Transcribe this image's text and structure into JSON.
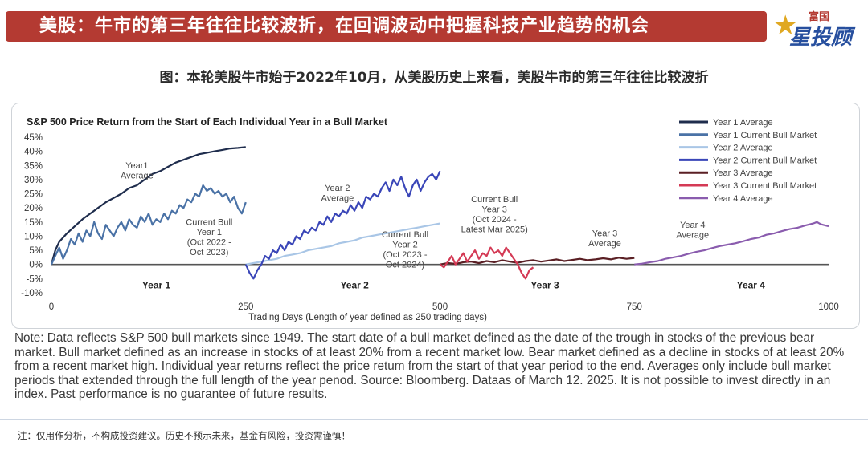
{
  "banner": {
    "title": "美股：牛市的第三年往往比较波折，在回调波动中把握科技产业趋势的机会"
  },
  "logo": {
    "top": "富国",
    "main": "星投顾"
  },
  "subtitle": "图：本轮美股牛市始于2022年10月，从美股历史上来看，美股牛市的第三年往往比较波折",
  "note": "Note: Data reflects S&P 500 bull markets since 1949. The start date of a bull market defined as the date of the trough in stocks of the previous bear market. Bull market defined as an increase in stocks of at least 20% from a recent market low. Bear market defined as a decline in stocks of at least 20% from a recent market high. Individual year returns reflect the price retum from the start of that year period to the end. Averages only include bull market periods that extended through the full length of the year penod. Source: Bloomberg. Dataas of March 12. 2025. It is not possible to invest directly in an index.  Past performance is no guarantee of future results.",
  "footer": "注：仅用作分析，不构成投资建议。历史不预示未来，基金有风险，投资需谨慎！",
  "chart_data": {
    "type": "line",
    "title": "S&P 500 Price Return from the Start of Each Individual Year in a Bull Market",
    "xlabel": "Trading Days (Length of year defined as 250 trading days)",
    "xlim": [
      0,
      1000
    ],
    "ylim": [
      -10,
      45
    ],
    "xticks": [
      0,
      250,
      500,
      750,
      1000
    ],
    "yticks": [
      -10,
      -5,
      0,
      5,
      10,
      15,
      20,
      25,
      30,
      35,
      40,
      45
    ],
    "year_labels": [
      {
        "text": "Year 1",
        "x": 135
      },
      {
        "text": "Year 2",
        "x": 390
      },
      {
        "text": "Year 3",
        "x": 635
      },
      {
        "text": "Year 4",
        "x": 900
      }
    ],
    "annotations": [
      {
        "lines": [
          "Year1",
          "Average"
        ],
        "x": 110,
        "y": 34
      },
      {
        "lines": [
          "Current Bull",
          "Year 1",
          "(Oct 2022 -",
          "Oct 2023)"
        ],
        "x": 203,
        "y": 14
      },
      {
        "lines": [
          "Year 2",
          "Average"
        ],
        "x": 368,
        "y": 26
      },
      {
        "lines": [
          "Current Bull",
          "Year 2",
          "(Oct 2023 -",
          "Oct 2024)"
        ],
        "x": 455,
        "y": 9.5
      },
      {
        "lines": [
          "Current Bull",
          "Year 3",
          "(Oct 2024 -",
          "Latest Mar 2025)"
        ],
        "x": 570,
        "y": 22
      },
      {
        "lines": [
          "Year 3",
          "Average"
        ],
        "x": 712,
        "y": 10
      },
      {
        "lines": [
          "Year 4",
          "Average"
        ],
        "x": 825,
        "y": 13
      }
    ],
    "legend_position": "top-right",
    "series": [
      {
        "name": "Year 1 Average",
        "color": "#1f2d4d",
        "x": [
          0,
          5,
          10,
          20,
          30,
          40,
          50,
          60,
          70,
          80,
          90,
          100,
          110,
          120,
          130,
          140,
          150,
          160,
          170,
          180,
          190,
          200,
          210,
          220,
          230,
          240,
          250
        ],
        "y": [
          0,
          5,
          8,
          11,
          13.5,
          16,
          18,
          20,
          22,
          23.5,
          25,
          27,
          28,
          30,
          32,
          33,
          34.5,
          36,
          37,
          38,
          39,
          39.5,
          40,
          40.5,
          41,
          41.2,
          41.5
        ]
      },
      {
        "name": "Year 1 Current Bull Market",
        "color": "#4a72a6",
        "x": [
          0,
          5,
          10,
          15,
          20,
          25,
          30,
          35,
          40,
          45,
          50,
          55,
          60,
          65,
          70,
          75,
          80,
          85,
          90,
          95,
          100,
          105,
          110,
          115,
          120,
          125,
          130,
          135,
          140,
          145,
          150,
          155,
          160,
          165,
          170,
          175,
          180,
          185,
          190,
          195,
          200,
          205,
          210,
          215,
          220,
          225,
          230,
          235,
          240,
          245,
          250
        ],
        "y": [
          0,
          3,
          6,
          2,
          5,
          9,
          7,
          11,
          8,
          12,
          10,
          15,
          11,
          9,
          14,
          12,
          10,
          13,
          15,
          12,
          16,
          14,
          13,
          17,
          15,
          18,
          14,
          16,
          15,
          18,
          16,
          19,
          18,
          21,
          20,
          23,
          22,
          25,
          24,
          28,
          26,
          27,
          25,
          26,
          24,
          25,
          22,
          24,
          20,
          18,
          22
        ]
      },
      {
        "name": "Year 2 Average",
        "color": "#a9c6e6",
        "x": [
          250,
          260,
          270,
          280,
          290,
          300,
          310,
          320,
          330,
          340,
          350,
          360,
          370,
          380,
          390,
          400,
          410,
          420,
          430,
          440,
          450,
          460,
          470,
          480,
          490,
          500
        ],
        "y": [
          0,
          0.5,
          1,
          1.5,
          2,
          3,
          3.5,
          4,
          5,
          5.5,
          6,
          6.5,
          7.5,
          8,
          8.5,
          9.5,
          10,
          10.5,
          11,
          11.5,
          12,
          12.5,
          13,
          13.5,
          14,
          14.5
        ]
      },
      {
        "name": "Year 2 Current Bull Market",
        "color": "#3a46b8",
        "x": [
          250,
          255,
          260,
          265,
          270,
          275,
          280,
          285,
          290,
          295,
          300,
          305,
          310,
          315,
          320,
          325,
          330,
          335,
          340,
          345,
          350,
          355,
          360,
          365,
          370,
          375,
          380,
          385,
          390,
          395,
          400,
          405,
          410,
          415,
          420,
          425,
          430,
          435,
          440,
          445,
          450,
          455,
          460,
          465,
          470,
          475,
          480,
          485,
          490,
          495,
          500
        ],
        "y": [
          0,
          -3,
          -5,
          -2,
          0,
          3,
          2,
          5,
          4,
          7,
          5,
          8,
          7,
          10,
          9,
          12,
          11,
          13,
          12,
          15,
          14,
          17,
          15,
          18,
          17,
          19,
          18,
          21,
          19,
          22,
          20,
          24,
          23,
          25,
          24,
          27,
          29,
          26,
          30,
          28,
          31,
          27,
          24,
          28,
          30,
          26,
          29,
          31,
          32,
          30,
          33
        ]
      },
      {
        "name": "Year 3 Average",
        "color": "#5a1f24",
        "x": [
          500,
          510,
          520,
          530,
          540,
          550,
          560,
          570,
          580,
          590,
          600,
          610,
          620,
          630,
          640,
          650,
          660,
          670,
          680,
          690,
          700,
          710,
          720,
          730,
          740,
          750
        ],
        "y": [
          0,
          0.5,
          0.2,
          0.8,
          1,
          0.5,
          1.2,
          0.8,
          1.5,
          1,
          0.6,
          1.2,
          1.5,
          1,
          1.4,
          1.8,
          1.2,
          1.6,
          2,
          1.5,
          1.8,
          2.2,
          1.8,
          2.4,
          2,
          2.3
        ]
      },
      {
        "name": "Year 3 Current Bull Market",
        "color": "#d43a55",
        "x": [
          500,
          505,
          510,
          515,
          520,
          525,
          530,
          535,
          540,
          545,
          550,
          555,
          560,
          565,
          570,
          575,
          580,
          585,
          590,
          595,
          600,
          605,
          610,
          615,
          620
        ],
        "y": [
          0,
          -1,
          1,
          3,
          0,
          2,
          4,
          1,
          3,
          5,
          2,
          4,
          3,
          6,
          4,
          5,
          3,
          6,
          4,
          2,
          0,
          -3,
          -5,
          -2,
          -1
        ]
      },
      {
        "name": "Year 4 Average",
        "color": "#8a5cae",
        "x": [
          750,
          760,
          770,
          780,
          790,
          800,
          810,
          820,
          830,
          840,
          850,
          860,
          870,
          880,
          890,
          900,
          910,
          920,
          930,
          940,
          950,
          960,
          970,
          980,
          985,
          990,
          1000
        ],
        "y": [
          0,
          0.3,
          0.8,
          1.2,
          2,
          2.5,
          3,
          3.8,
          4.5,
          5,
          5.8,
          6.5,
          7,
          7.5,
          8.2,
          9,
          9.5,
          10.5,
          11,
          11.8,
          12.5,
          13,
          13.8,
          14.5,
          15,
          14.2,
          13.5
        ]
      }
    ]
  }
}
